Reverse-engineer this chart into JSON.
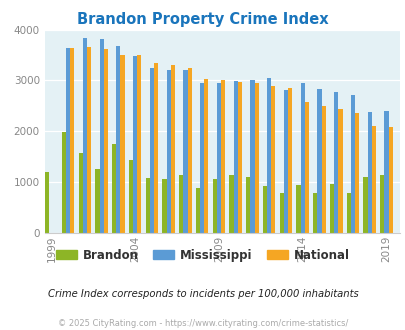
{
  "title": "Brandon Property Crime Index",
  "years": [
    1999,
    2000,
    2001,
    2002,
    2003,
    2004,
    2005,
    2006,
    2007,
    2008,
    2009,
    2010,
    2011,
    2012,
    2013,
    2014,
    2015,
    2016,
    2017,
    2018,
    2019
  ],
  "brandon": [
    1200,
    1980,
    1560,
    1250,
    1750,
    1440,
    1070,
    1060,
    1130,
    880,
    1060,
    1130,
    1100,
    920,
    780,
    930,
    790,
    960,
    780,
    1100,
    1130
  ],
  "mississippi": [
    null,
    3630,
    3840,
    3810,
    3680,
    3480,
    3250,
    3200,
    3200,
    2950,
    2950,
    2980,
    3010,
    3050,
    2820,
    2950,
    2840,
    2770,
    2720,
    2380,
    2400
  ],
  "national": [
    null,
    3640,
    3660,
    3610,
    3500,
    3510,
    3340,
    3300,
    3250,
    3020,
    3010,
    2970,
    2950,
    2900,
    2860,
    2580,
    2490,
    2440,
    2360,
    2100,
    2090
  ],
  "brandon_color": "#8db526",
  "mississippi_color": "#5b9bd5",
  "national_color": "#f5a623",
  "bg_color": "#e4f1f5",
  "outer_bg": "#ffffff",
  "ylim": [
    0,
    4000
  ],
  "yticks": [
    0,
    1000,
    2000,
    3000,
    4000
  ],
  "xtick_years": [
    1999,
    2004,
    2009,
    2014,
    2019
  ],
  "subtitle": "Crime Index corresponds to incidents per 100,000 inhabitants",
  "footer": "© 2025 CityRating.com - https://www.cityrating.com/crime-statistics/",
  "legend_labels": [
    "Brandon",
    "Mississippi",
    "National"
  ],
  "title_color": "#1a75bc",
  "subtitle_color": "#222222",
  "footer_color": "#aaaaaa"
}
